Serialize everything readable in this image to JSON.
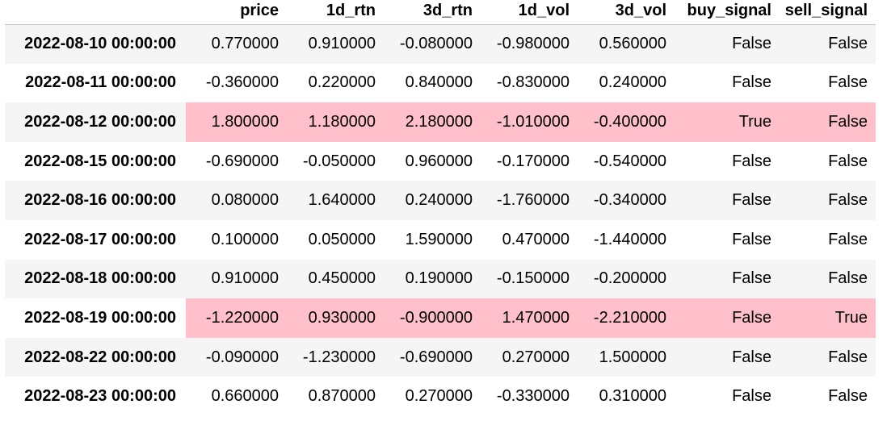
{
  "table": {
    "columns": [
      "price",
      "1d_rtn",
      "3d_rtn",
      "1d_vol",
      "3d_vol",
      "buy_signal",
      "sell_signal"
    ],
    "rows": [
      {
        "index": "2022-08-10 00:00:00",
        "cells": [
          "0.770000",
          "0.910000",
          "-0.080000",
          "-0.980000",
          "0.560000",
          "False",
          "False"
        ],
        "highlighted": false
      },
      {
        "index": "2022-08-11 00:00:00",
        "cells": [
          "-0.360000",
          "0.220000",
          "0.840000",
          "-0.830000",
          "0.240000",
          "False",
          "False"
        ],
        "highlighted": false
      },
      {
        "index": "2022-08-12 00:00:00",
        "cells": [
          "1.800000",
          "1.180000",
          "2.180000",
          "-1.010000",
          "-0.400000",
          "True",
          "False"
        ],
        "highlighted": true
      },
      {
        "index": "2022-08-15 00:00:00",
        "cells": [
          "-0.690000",
          "-0.050000",
          "0.960000",
          "-0.170000",
          "-0.540000",
          "False",
          "False"
        ],
        "highlighted": false
      },
      {
        "index": "2022-08-16 00:00:00",
        "cells": [
          "0.080000",
          "1.640000",
          "0.240000",
          "-1.760000",
          "-0.340000",
          "False",
          "False"
        ],
        "highlighted": false
      },
      {
        "index": "2022-08-17 00:00:00",
        "cells": [
          "0.100000",
          "0.050000",
          "1.590000",
          "0.470000",
          "-1.440000",
          "False",
          "False"
        ],
        "highlighted": false
      },
      {
        "index": "2022-08-18 00:00:00",
        "cells": [
          "0.910000",
          "0.450000",
          "0.190000",
          "-0.150000",
          "-0.200000",
          "False",
          "False"
        ],
        "highlighted": false
      },
      {
        "index": "2022-08-19 00:00:00",
        "cells": [
          "-1.220000",
          "0.930000",
          "-0.900000",
          "1.470000",
          "-2.210000",
          "False",
          "True"
        ],
        "highlighted": true
      },
      {
        "index": "2022-08-22 00:00:00",
        "cells": [
          "-0.090000",
          "-1.230000",
          "-0.690000",
          "0.270000",
          "1.500000",
          "False",
          "False"
        ],
        "highlighted": false
      },
      {
        "index": "2022-08-23 00:00:00",
        "cells": [
          "0.660000",
          "0.870000",
          "0.270000",
          "-0.330000",
          "0.310000",
          "False",
          "False"
        ],
        "highlighted": false
      }
    ]
  },
  "colors": {
    "highlight": "#ffc0cb",
    "stripe": "#f5f5f5",
    "background": "#ffffff"
  }
}
